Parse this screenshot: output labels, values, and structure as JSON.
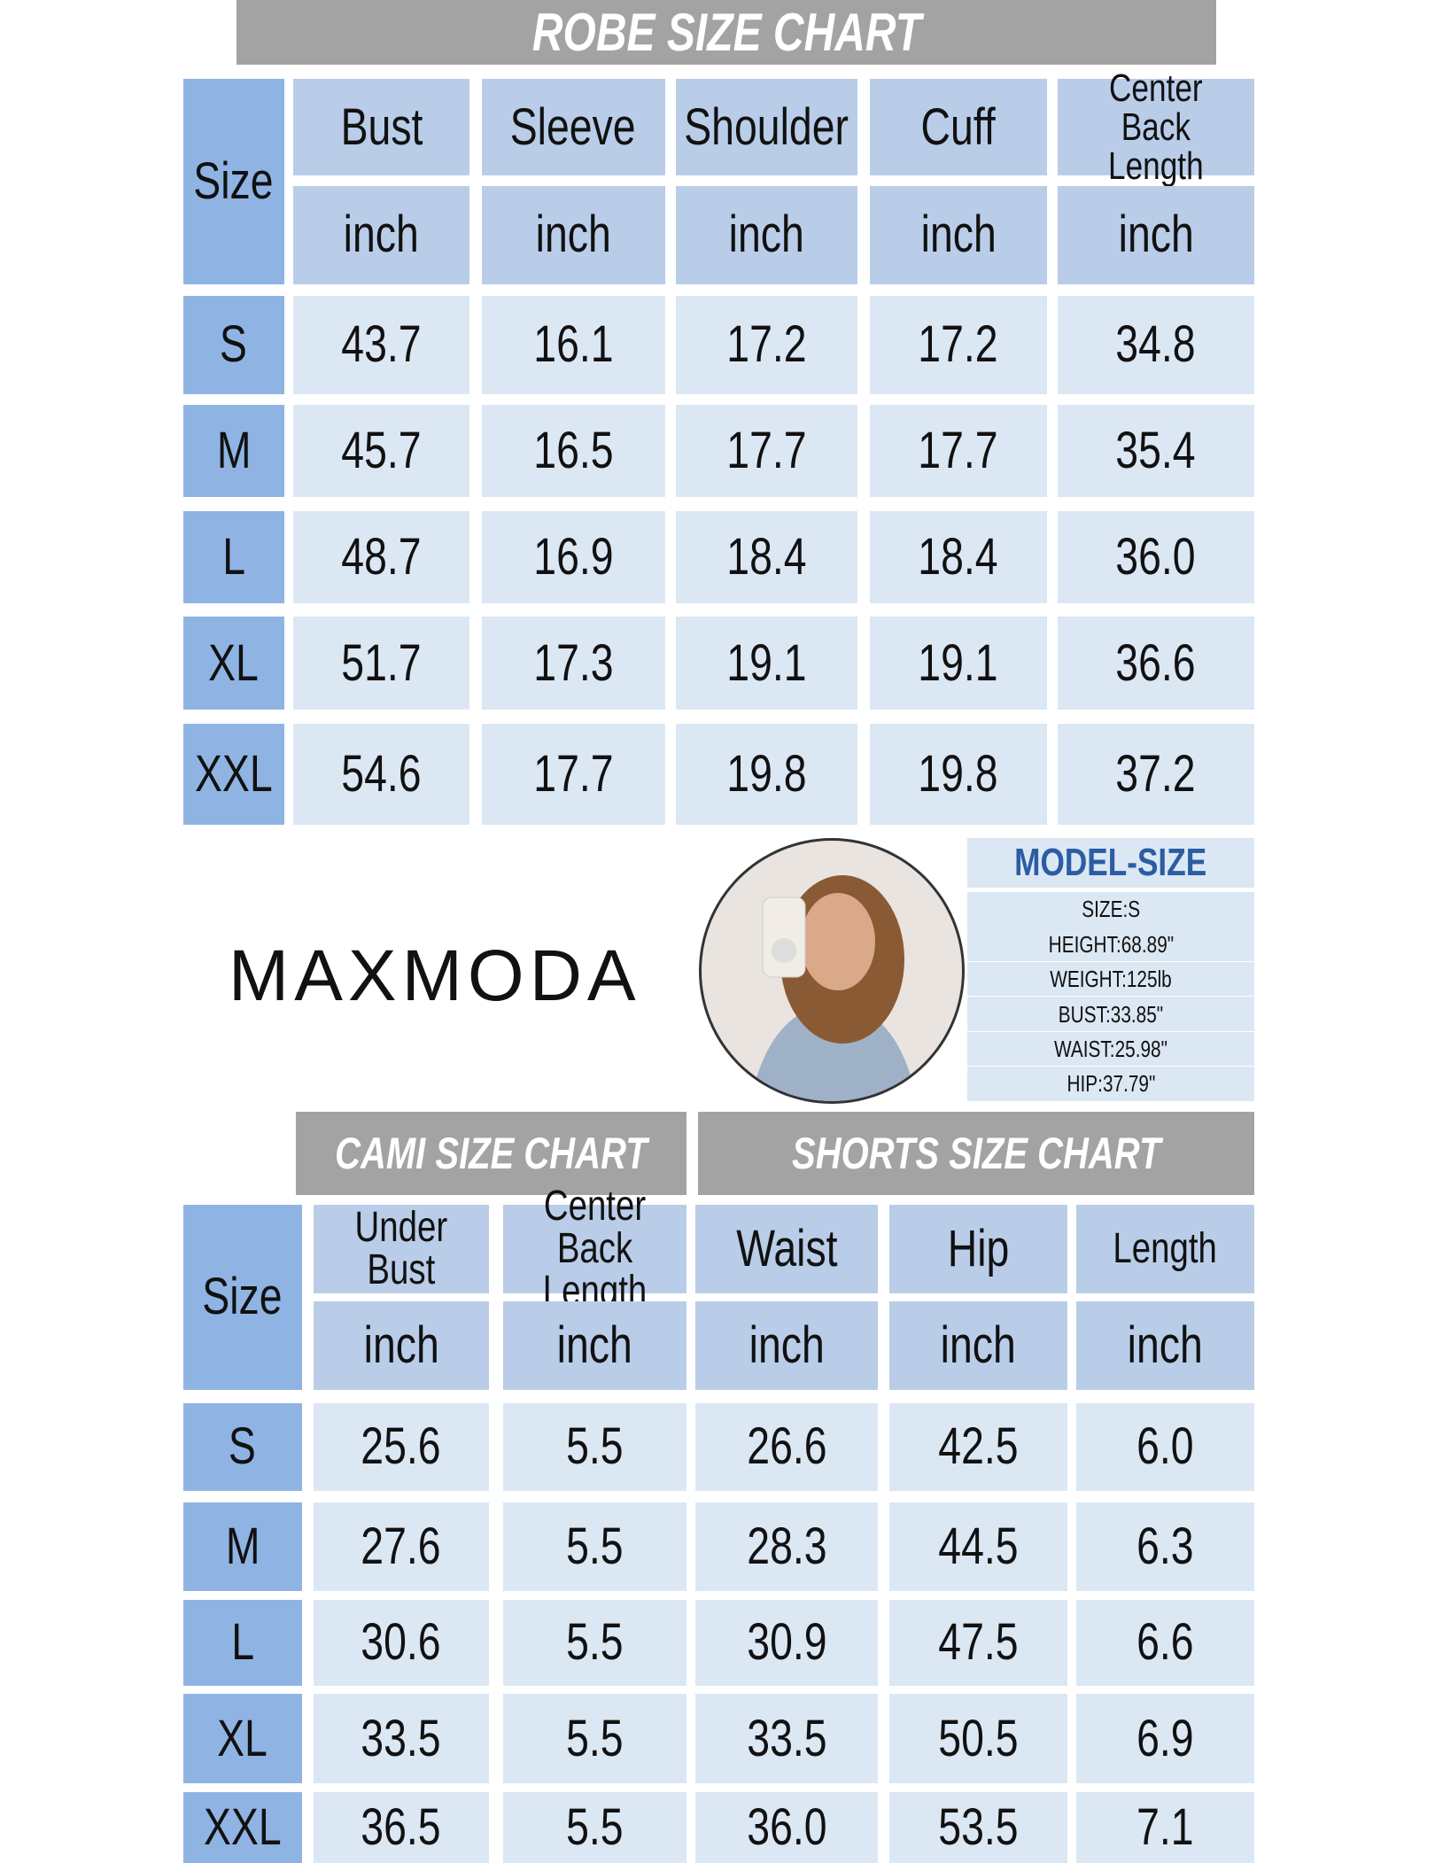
{
  "robe": {
    "title": "ROBE SIZE CHART",
    "size_label": "Size",
    "columns": [
      "Bust",
      "Sleeve",
      "Shoulder",
      "Cuff",
      "Center Back Length"
    ],
    "units": [
      "inch",
      "inch",
      "inch",
      "inch",
      "inch"
    ],
    "rows": [
      {
        "size": "S",
        "values": [
          "43.7",
          "16.1",
          "17.2",
          "17.2",
          "34.8"
        ]
      },
      {
        "size": "M",
        "values": [
          "45.7",
          "16.5",
          "17.7",
          "17.7",
          "35.4"
        ]
      },
      {
        "size": "L",
        "values": [
          "48.7",
          "16.9",
          "18.4",
          "18.4",
          "36.0"
        ]
      },
      {
        "size": "XL",
        "values": [
          "51.7",
          "17.3",
          "19.1",
          "19.1",
          "36.6"
        ]
      },
      {
        "size": "XXL",
        "values": [
          "54.6",
          "17.7",
          "19.8",
          "19.8",
          "37.2"
        ]
      }
    ]
  },
  "brand": "MAXMODA",
  "model": {
    "title": "MODEL-SIZE",
    "lines": [
      "SIZE:S",
      "HEIGHT:68.89\"",
      "WEIGHT:125lb",
      "BUST:33.85\"",
      "WAIST:25.98\"",
      "HIP:37.79\""
    ]
  },
  "bottom": {
    "cami_title": "CAMI SIZE CHART",
    "shorts_title": "SHORTS SIZE CHART",
    "size_label": "Size",
    "columns": [
      "Under Bust",
      "Center Back Length",
      "Waist",
      "Hip",
      "Length"
    ],
    "units": [
      "inch",
      "inch",
      "inch",
      "inch",
      "inch"
    ],
    "rows": [
      {
        "size": "S",
        "values": [
          "25.6",
          "5.5",
          "26.6",
          "42.5",
          "6.0"
        ]
      },
      {
        "size": "M",
        "values": [
          "27.6",
          "5.5",
          "28.3",
          "44.5",
          "6.3"
        ]
      },
      {
        "size": "L",
        "values": [
          "30.6",
          "5.5",
          "30.9",
          "47.5",
          "6.6"
        ]
      },
      {
        "size": "XL",
        "values": [
          "33.5",
          "5.5",
          "33.5",
          "50.5",
          "6.9"
        ]
      },
      {
        "size": "XXL",
        "values": [
          "36.5",
          "5.5",
          "36.0",
          "53.5",
          "7.1"
        ]
      }
    ]
  }
}
